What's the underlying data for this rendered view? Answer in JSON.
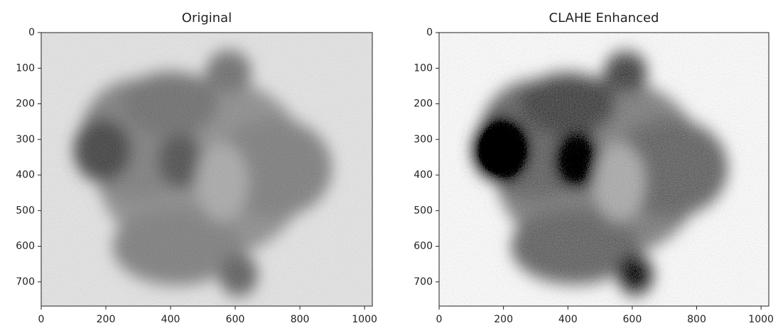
{
  "chart_data": [
    {
      "type": "image",
      "title": "Original",
      "xlim": [
        0,
        1024
      ],
      "ylim": [
        768,
        0
      ],
      "xticks": [
        0,
        200,
        400,
        600,
        800,
        1000
      ],
      "yticks": [
        0,
        100,
        200,
        300,
        400,
        500,
        600,
        700
      ]
    },
    {
      "type": "image",
      "title": "CLAHE Enhanced",
      "xlim": [
        0,
        1024
      ],
      "ylim": [
        768,
        0
      ],
      "xticks": [
        0,
        200,
        400,
        600,
        800,
        1000
      ],
      "yticks": [
        0,
        100,
        200,
        300,
        400,
        500,
        600,
        700
      ]
    }
  ]
}
